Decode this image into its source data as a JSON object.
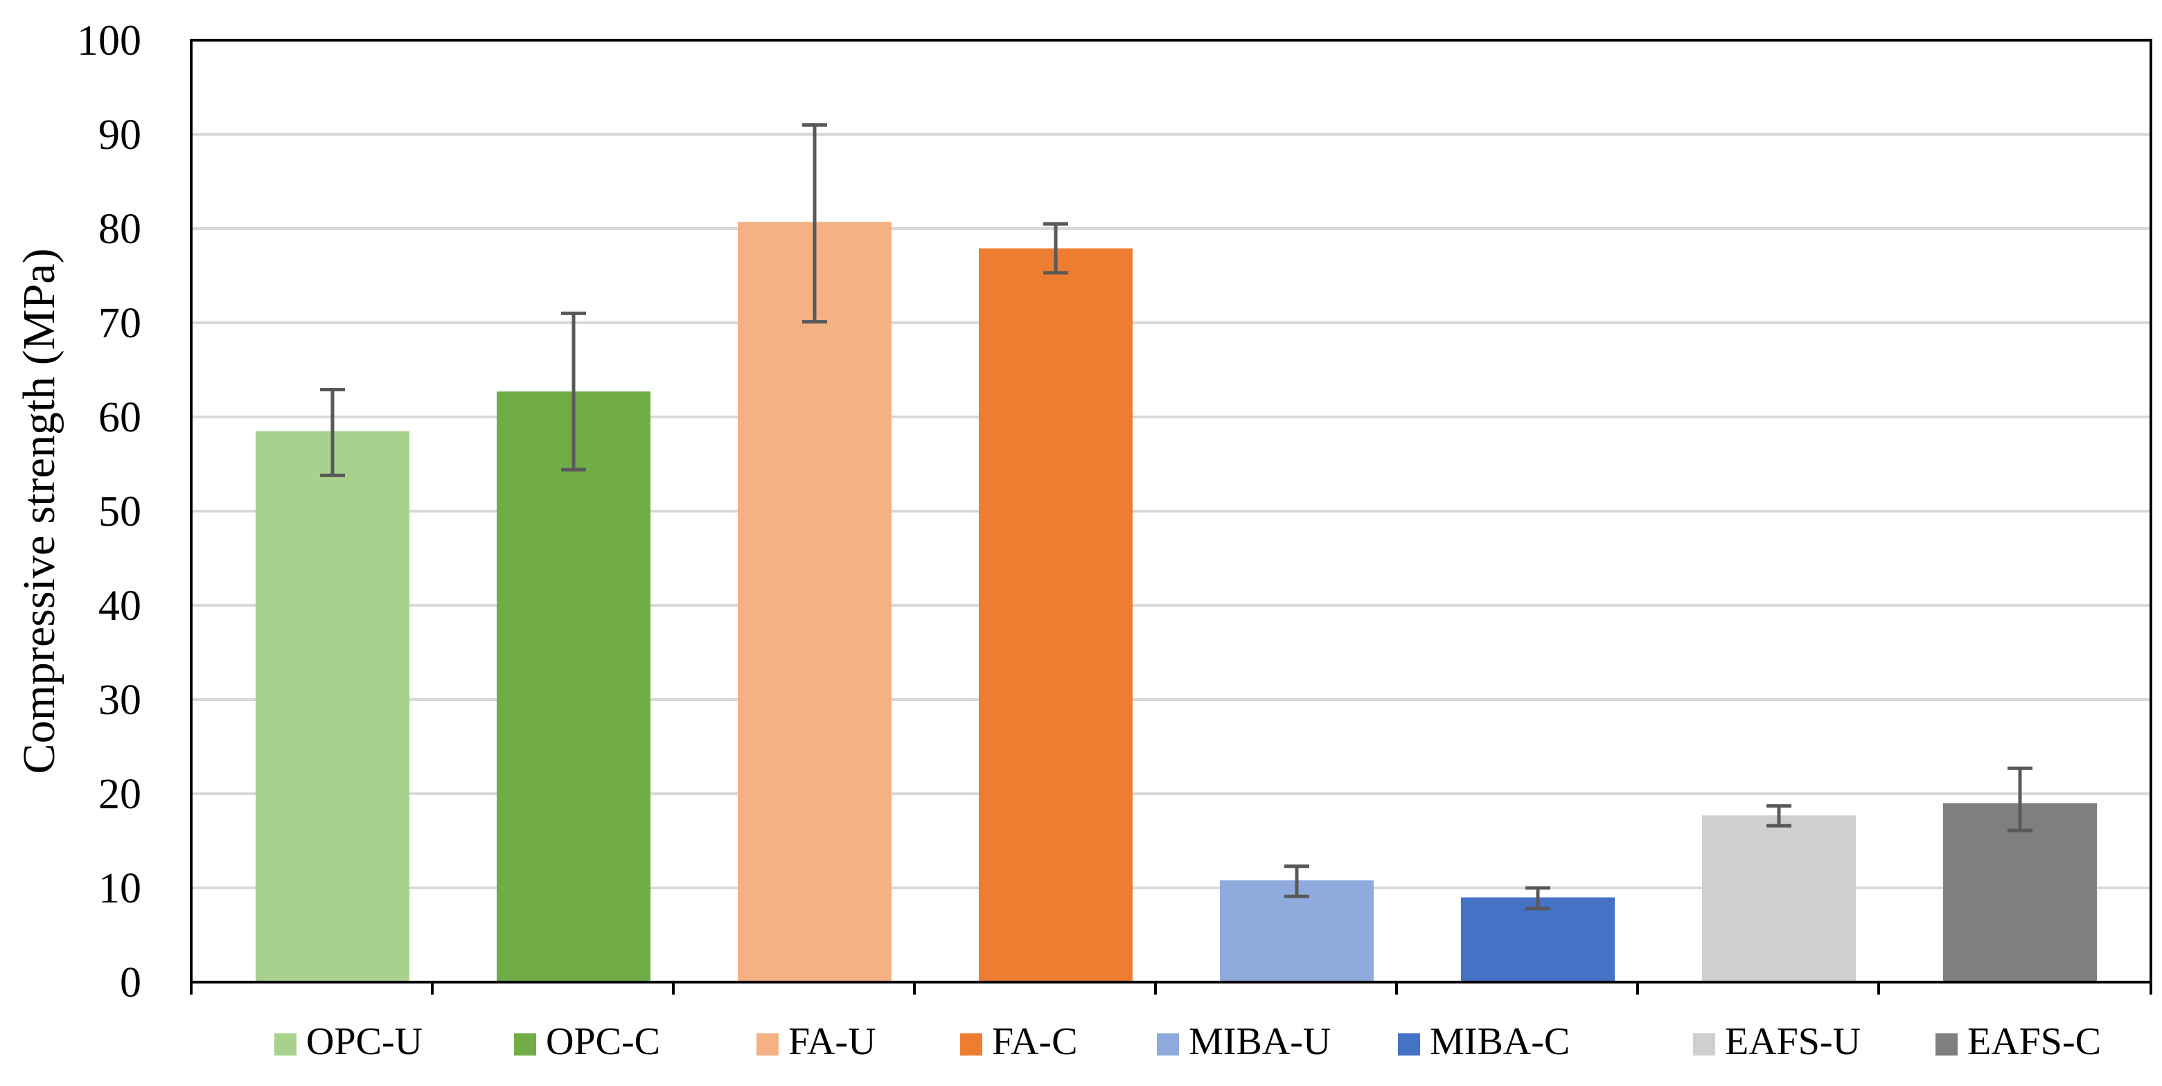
{
  "chart_data": {
    "type": "bar",
    "title": "",
    "xlabel": "",
    "ylabel": "Compressive strength (MPa)",
    "ylim": [
      0,
      100
    ],
    "yticks": [
      0,
      10,
      20,
      30,
      40,
      50,
      60,
      70,
      80,
      90,
      100
    ],
    "ytick_labels": [
      "0",
      "10",
      "20",
      "30",
      "40",
      "50",
      "60",
      "70",
      "80",
      "90",
      "100"
    ],
    "grid": true,
    "legend_position": "bottom",
    "categories": [
      "OPC-U",
      "OPC-C",
      "FA-U",
      "FA-C",
      "MIBA-U",
      "MIBA-C",
      "EAFS-U",
      "EAFS-C"
    ],
    "values": [
      58.5,
      62.7,
      80.7,
      77.9,
      10.8,
      9.0,
      17.7,
      19.0
    ],
    "error_low": [
      53.8,
      54.4,
      70.1,
      75.3,
      9.1,
      7.8,
      16.6,
      16.1
    ],
    "error_high": [
      62.9,
      71.0,
      91.0,
      80.5,
      12.3,
      10.0,
      18.7,
      22.7
    ],
    "colors": [
      "#A9D18E",
      "#70AD47",
      "#F4B183",
      "#ED7D31",
      "#8FAADC",
      "#4472C4",
      "#D0CECE",
      "#7F7F7F"
    ],
    "legend": [
      "OPC-U",
      "OPC-C",
      "FA-U",
      "FA-C",
      "MIBA-U",
      "MIBA-C",
      "EAFS-U",
      "EAFS-C"
    ]
  }
}
